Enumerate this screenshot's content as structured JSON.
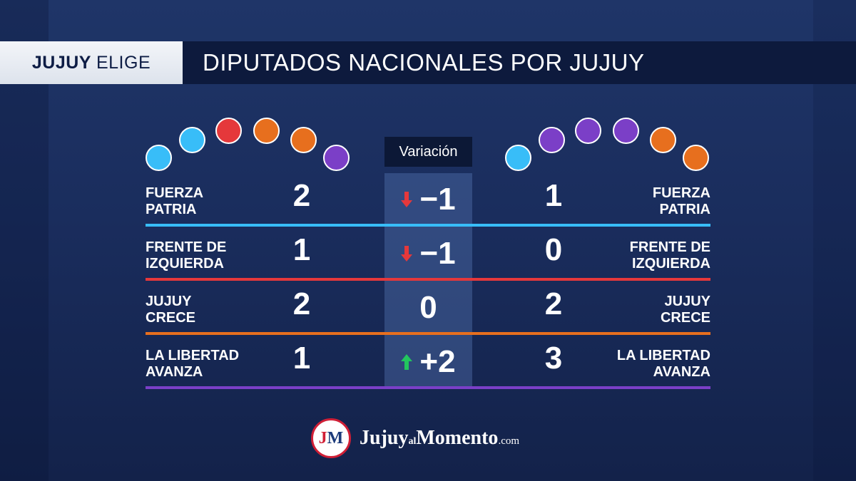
{
  "header": {
    "badge_bold": "JUJUY",
    "badge_light": "ELIGE",
    "title": "DIPUTADOS NACIONALES POR JUJUY"
  },
  "variation_label": "Variación",
  "colors": {
    "fuerza_patria": "#38bdf8",
    "frente_izquierda": "#e5383b",
    "jujuy_crece": "#e76f1e",
    "la_libertad_avanza": "#7b3fc7",
    "arrow_down": "#e5383b",
    "arrow_up": "#22c55e"
  },
  "seats_left": [
    "#38bdf8",
    "#38bdf8",
    "#e5383b",
    "#e76f1e",
    "#e76f1e",
    "#7b3fc7"
  ],
  "seats_right": [
    "#38bdf8",
    "#7b3fc7",
    "#7b3fc7",
    "#7b3fc7",
    "#e76f1e",
    "#e76f1e"
  ],
  "chart_data": {
    "type": "table",
    "columns": [
      "",
      "",
      "Variación",
      "",
      ""
    ],
    "rows": [
      {
        "party_l": [
          "FUERZA",
          "PATRIA"
        ],
        "before": "2",
        "delta": "−1",
        "direction": "down",
        "after": "1",
        "party_r": [
          "FUERZA",
          "PATRIA"
        ],
        "color": "#38bdf8"
      },
      {
        "party_l": [
          "FRENTE DE",
          "IZQUIERDA"
        ],
        "before": "1",
        "delta": "−1",
        "direction": "down",
        "after": "0",
        "party_r": [
          "FRENTE DE",
          "IZQUIERDA"
        ],
        "color": "#e5383b"
      },
      {
        "party_l": [
          "JUJUY",
          "CRECE"
        ],
        "before": "2",
        "delta": "0",
        "direction": "none",
        "after": "2",
        "party_r": [
          "JUJUY",
          "CRECE"
        ],
        "color": "#e76f1e"
      },
      {
        "party_l": [
          "LA LIBERTAD",
          "AVANZA"
        ],
        "before": "1",
        "delta": "+2",
        "direction": "up",
        "after": "3",
        "party_r": [
          "LA LIBERTAD",
          "AVANZA"
        ],
        "color": "#7b3fc7"
      }
    ]
  },
  "logo": {
    "mark_j": "J",
    "mark_m": "M",
    "name_a": "Jujuy",
    "name_small": "al",
    "name_b": "Momento",
    "tld": ".com"
  }
}
